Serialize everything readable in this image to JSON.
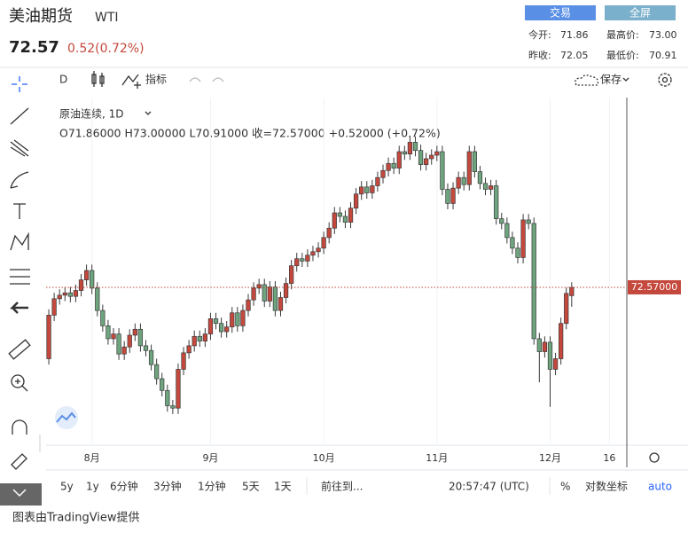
{
  "header": {
    "title": "美油期货",
    "symbol": "WTI",
    "price": "72.57",
    "change": "0.52(0.72%)",
    "buttons": [
      "交易",
      "全屏"
    ],
    "stats": [
      {
        "label": "今开:",
        "value": "71.86"
      },
      {
        "label": "最高价:",
        "value": "73.00"
      },
      {
        "label": "昨收:",
        "value": "72.05"
      },
      {
        "label": "最低价:",
        "value": "70.91"
      }
    ]
  },
  "toolbar": {
    "interval": "D",
    "indicators": "指标",
    "save": "保存"
  },
  "chart_data": {
    "type": "candlestick",
    "legend_symbol": "原油连续, 1D",
    "legend_ohlc": "O71.86000   H73.00000   L70.91000   收=72.57000   +0.52000 (+0.72%)",
    "last_price_label": "72.57000",
    "up_color": "#c5483d",
    "down_color": "#6ea57e",
    "ylim": [
      59.3,
      88.7
    ],
    "xlim": [
      -0.5,
      106.9
    ],
    "xticks": [
      {
        "value": 8,
        "label": "8月"
      },
      {
        "value": 30,
        "label": "9月"
      },
      {
        "value": 51,
        "label": "10月"
      },
      {
        "value": 72,
        "label": "11月"
      },
      {
        "value": 93,
        "label": "12月"
      },
      {
        "value": 104,
        "label": "16"
      }
    ],
    "grid": true,
    "open": [
      66.5,
      70.2,
      71.6,
      71.9,
      72.1,
      71.8,
      72.3,
      73.2,
      74.0,
      72.5,
      70.6,
      69.3,
      68.2,
      68.6,
      66.9,
      67.5,
      68.5,
      69.0,
      67.6,
      67.2,
      66.0,
      64.8,
      63.8,
      62.5,
      62.3,
      65.6,
      67.0,
      67.6,
      68.4,
      68.0,
      68.6,
      69.9,
      69.5,
      68.8,
      69.2,
      70.4,
      69.3,
      70.6,
      71.5,
      72.5,
      72.8,
      71.4,
      72.6,
      70.6,
      71.7,
      72.9,
      74.4,
      75.0,
      74.8,
      75.3,
      75.6,
      75.9,
      76.8,
      77.6,
      78.9,
      78.6,
      78.1,
      79.3,
      80.5,
      81.1,
      80.6,
      81.2,
      81.9,
      82.5,
      83.1,
      82.7,
      84.1,
      83.9,
      84.9,
      84.2,
      83.0,
      83.5,
      83.8,
      84.1,
      80.9,
      79.7,
      81.0,
      81.9,
      81.3,
      84.1,
      82.4,
      81.4,
      80.9,
      81.2,
      78.4,
      78.0,
      76.8,
      75.9,
      75.1,
      78.3,
      78.0,
      68.2,
      67.1,
      67.9,
      65.6,
      66.5,
      69.5,
      71.86
    ],
    "high": [
      70.7,
      72.1,
      72.4,
      72.6,
      72.6,
      72.8,
      73.7,
      74.5,
      74.5,
      73.0,
      71.1,
      69.8,
      69.1,
      69.1,
      68.0,
      69.0,
      69.5,
      69.5,
      68.1,
      67.7,
      66.5,
      65.3,
      64.3,
      63.0,
      66.1,
      67.5,
      68.1,
      68.9,
      68.9,
      69.1,
      70.4,
      70.4,
      70.0,
      69.7,
      70.9,
      70.9,
      71.1,
      72.0,
      73.0,
      73.3,
      73.3,
      73.1,
      73.1,
      72.2,
      73.4,
      74.9,
      75.5,
      75.5,
      75.8,
      76.1,
      76.4,
      77.3,
      78.1,
      79.4,
      79.4,
      79.1,
      79.8,
      81.0,
      81.6,
      81.6,
      81.7,
      82.4,
      83.0,
      83.6,
      83.6,
      84.6,
      84.6,
      85.4,
      85.4,
      84.7,
      84.0,
      84.3,
      84.6,
      84.6,
      81.4,
      81.5,
      82.4,
      82.4,
      84.6,
      84.6,
      82.9,
      81.9,
      81.7,
      81.7,
      78.9,
      78.5,
      77.3,
      76.4,
      78.8,
      78.8,
      78.5,
      68.7,
      68.4,
      68.4,
      67.0,
      70.0,
      72.55,
      73.0
    ],
    "low": [
      66.0,
      69.7,
      71.1,
      71.4,
      71.3,
      71.3,
      71.8,
      72.7,
      72.0,
      70.1,
      68.8,
      67.7,
      67.7,
      66.4,
      66.4,
      67.0,
      68.0,
      67.1,
      66.7,
      65.5,
      64.3,
      63.3,
      62.0,
      61.8,
      61.8,
      65.1,
      66.5,
      67.1,
      67.5,
      67.5,
      68.1,
      69.0,
      68.3,
      68.3,
      68.7,
      68.8,
      68.8,
      70.1,
      71.0,
      72.0,
      70.9,
      70.9,
      70.1,
      70.1,
      71.2,
      72.4,
      73.9,
      74.3,
      74.3,
      74.8,
      75.1,
      75.4,
      76.3,
      77.1,
      78.1,
      77.6,
      77.6,
      78.8,
      80.0,
      80.1,
      80.1,
      80.7,
      81.4,
      82.0,
      82.2,
      82.2,
      83.4,
      83.4,
      83.7,
      82.5,
      82.5,
      83.0,
      83.3,
      80.4,
      79.2,
      79.2,
      80.5,
      80.8,
      80.8,
      81.9,
      80.9,
      80.4,
      80.4,
      77.9,
      77.5,
      76.3,
      75.4,
      74.6,
      74.6,
      77.5,
      67.7,
      64.5,
      66.6,
      62.4,
      65.1,
      66.0,
      69.0,
      70.91
    ],
    "close": [
      70.2,
      71.6,
      71.9,
      72.1,
      71.8,
      72.3,
      73.2,
      74.0,
      72.5,
      70.6,
      69.3,
      68.2,
      68.6,
      66.9,
      67.5,
      68.5,
      69.0,
      67.6,
      67.2,
      66.0,
      64.8,
      63.8,
      62.5,
      62.3,
      65.6,
      67.0,
      67.6,
      68.4,
      68.0,
      68.6,
      69.9,
      69.5,
      68.8,
      69.2,
      70.4,
      69.3,
      70.6,
      71.5,
      72.5,
      72.8,
      71.4,
      72.6,
      70.6,
      71.7,
      72.9,
      74.4,
      75.0,
      74.8,
      75.3,
      75.6,
      75.9,
      76.8,
      77.6,
      78.9,
      78.6,
      78.1,
      79.3,
      80.5,
      81.1,
      80.6,
      81.2,
      81.9,
      82.5,
      83.1,
      82.7,
      84.1,
      83.9,
      84.9,
      84.2,
      83.0,
      83.5,
      83.8,
      84.1,
      80.9,
      79.7,
      81.0,
      81.9,
      81.3,
      84.1,
      82.4,
      81.4,
      80.9,
      81.2,
      78.4,
      78.0,
      76.8,
      75.9,
      75.1,
      78.3,
      78.0,
      68.2,
      67.1,
      67.9,
      65.6,
      66.5,
      69.5,
      72.05,
      72.57
    ]
  },
  "bottom_bar": {
    "ranges": [
      "5y",
      "1y",
      "6分钟",
      "3分钟",
      "1分钟",
      "5天",
      "1天"
    ],
    "goto": "前往到...",
    "time": "20:57:47 (UTC)",
    "percent": "%",
    "log": "对数坐标",
    "auto": "auto"
  },
  "footer": "图表由TradingView提供"
}
